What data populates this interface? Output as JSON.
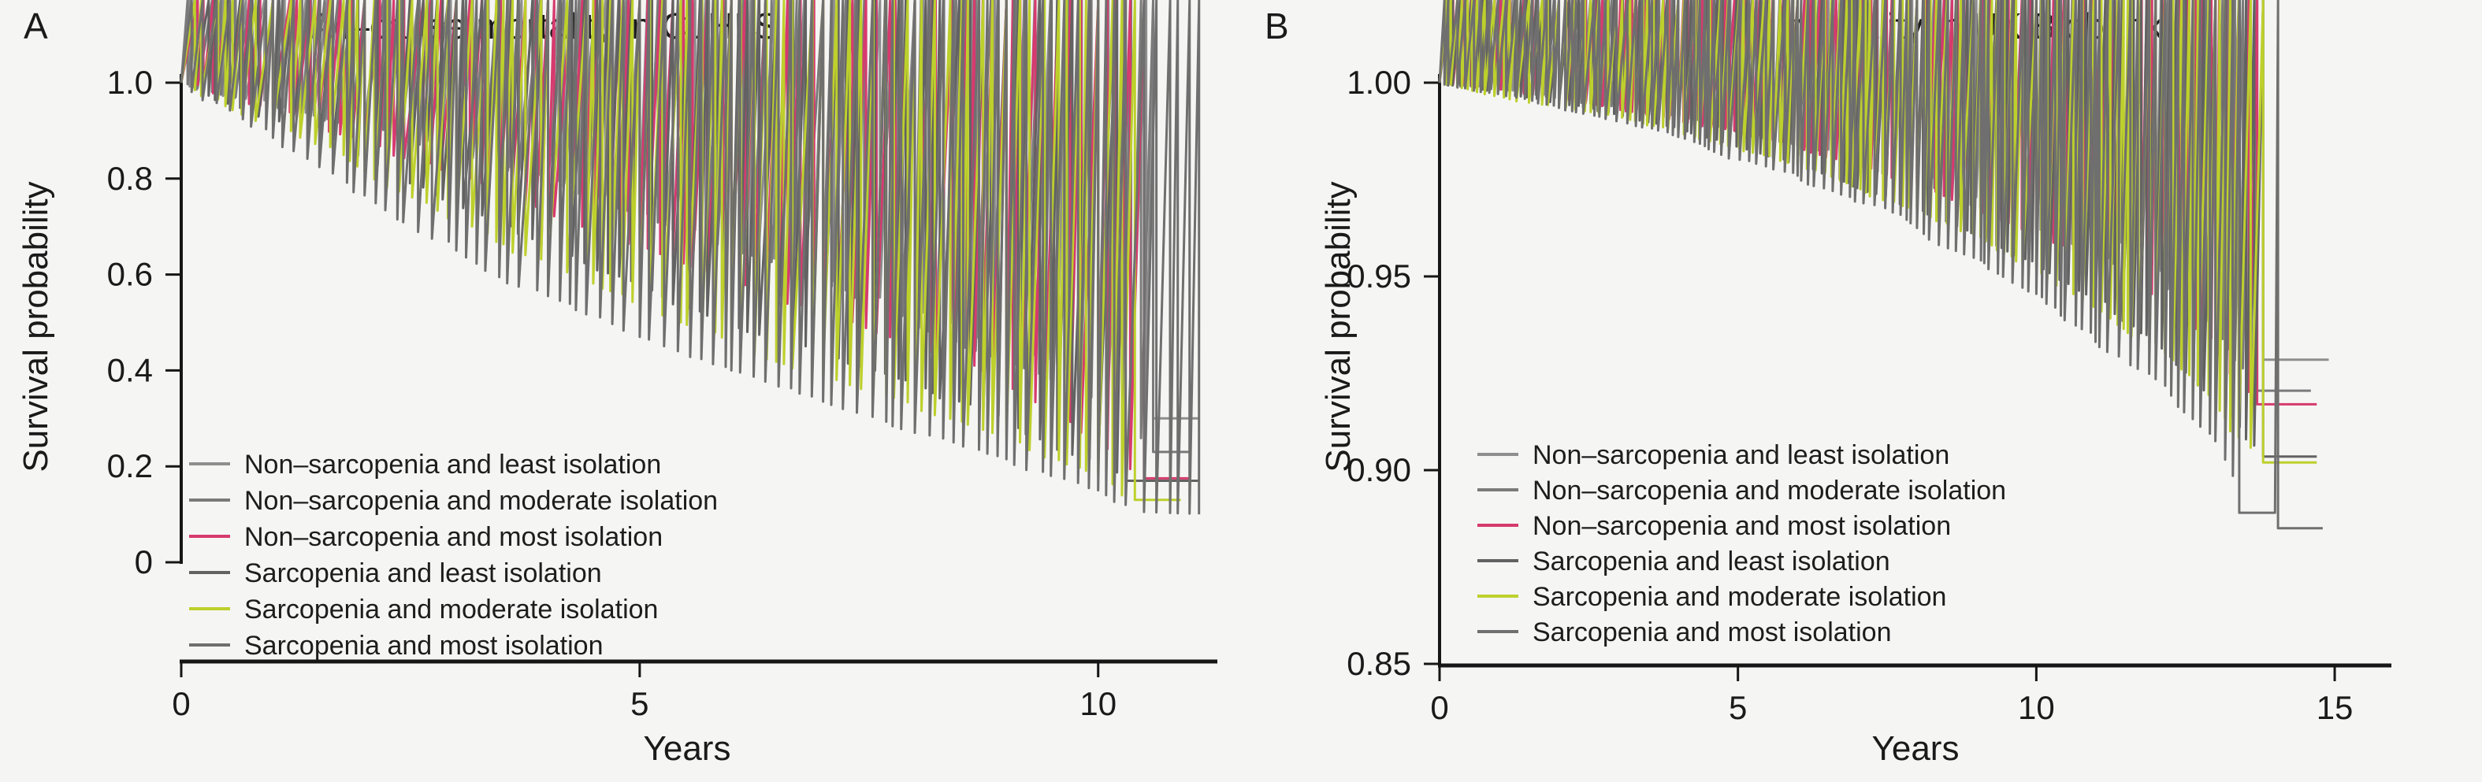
{
  "figure": {
    "background": "#f5f5f4",
    "text_color": "#1a1a1a",
    "axis_color": "#161616"
  },
  "chart_data": [
    {
      "panel_label": "A",
      "type": "line",
      "subtype": "kaplan-meier-survival",
      "title": "All–cause mortality in CLHLS",
      "xlabel": "Years",
      "ylabel": "Survival probability",
      "xlim": [
        0,
        11.3
      ],
      "ylim": [
        0,
        1.0
      ],
      "xticks": [
        0,
        5,
        10
      ],
      "xtick_labels": [
        "0",
        "5",
        "10"
      ],
      "yticks": [
        1.0,
        0.8,
        0.6,
        0.4,
        0.2,
        0.0
      ],
      "ytick_labels": [
        "1.0",
        "0.8",
        "0.6",
        "0.4",
        "0.2",
        "0"
      ],
      "grid": false,
      "legend_position": "inside-lower-left",
      "series": [
        {
          "name": "Non–sarcopenia and least isolation",
          "color": "#8e8e8e",
          "x": [
            0,
            1,
            2,
            3,
            4,
            5,
            6,
            7,
            8,
            9,
            10,
            10.6,
            11.1
          ],
          "y": [
            1.0,
            0.955,
            0.91,
            0.855,
            0.8,
            0.735,
            0.665,
            0.6,
            0.525,
            0.45,
            0.385,
            0.3,
            0.3
          ]
        },
        {
          "name": "Non–sarcopenia and moderate isolation",
          "color": "#7a7a7a",
          "x": [
            0,
            1,
            2,
            3,
            4,
            5,
            6,
            7,
            8,
            9,
            10,
            10.6,
            11.0
          ],
          "y": [
            1.0,
            0.95,
            0.905,
            0.85,
            0.79,
            0.725,
            0.655,
            0.58,
            0.5,
            0.42,
            0.33,
            0.23,
            0.23
          ]
        },
        {
          "name": "Non–sarcopenia and most isolation",
          "color": "#d63a6e",
          "x": [
            0,
            1,
            2,
            3,
            4,
            5,
            6,
            7,
            8,
            9,
            10,
            10.5,
            11.0
          ],
          "y": [
            1.0,
            0.945,
            0.88,
            0.805,
            0.73,
            0.66,
            0.59,
            0.52,
            0.45,
            0.38,
            0.25,
            0.175,
            0.175
          ]
        },
        {
          "name": "Sarcopenia and least isolation",
          "color": "#626262",
          "x": [
            0,
            1,
            2,
            3,
            4,
            5,
            6,
            7,
            8,
            9,
            10,
            10.3,
            11.1
          ],
          "y": [
            1.0,
            0.925,
            0.84,
            0.745,
            0.655,
            0.575,
            0.5,
            0.435,
            0.37,
            0.295,
            0.21,
            0.17,
            0.17
          ]
        },
        {
          "name": "Sarcopenia and moderate isolation",
          "color": "#bdd02c",
          "x": [
            0,
            1,
            2,
            3,
            4,
            5,
            6,
            7,
            8,
            9,
            10,
            10.4,
            10.9
          ],
          "y": [
            1.0,
            0.915,
            0.815,
            0.71,
            0.62,
            0.53,
            0.455,
            0.39,
            0.325,
            0.26,
            0.185,
            0.13,
            0.13
          ]
        },
        {
          "name": "Sarcopenia and most isolation",
          "color": "#6f6f6f",
          "x": [
            0,
            1,
            2,
            3,
            4,
            5,
            6,
            7,
            8,
            9,
            10,
            10.5,
            11.1
          ],
          "y": [
            1.0,
            0.885,
            0.765,
            0.65,
            0.555,
            0.47,
            0.4,
            0.335,
            0.27,
            0.215,
            0.15,
            0.105,
            0.1
          ]
        }
      ]
    },
    {
      "panel_label": "B",
      "type": "line",
      "subtype": "kaplan-meier-survival",
      "title": "All–cause mortality in UK Biobank",
      "xlabel": "Years",
      "ylabel": "Survival probability",
      "xlim": [
        0,
        15.95
      ],
      "ylim": [
        0.85,
        1.0
      ],
      "xticks": [
        0,
        5,
        10,
        15
      ],
      "xtick_labels": [
        "0",
        "5",
        "10",
        "15"
      ],
      "yticks": [
        1.0,
        0.95,
        0.9,
        0.85
      ],
      "ytick_labels": [
        "1.00",
        "0.95",
        "0.90",
        "0.85"
      ],
      "grid": false,
      "legend_position": "inside-lower-left",
      "series": [
        {
          "name": "Non–sarcopenia and least isolation",
          "color": "#8e8e8e",
          "x": [
            0,
            2,
            4,
            6,
            8,
            10,
            12,
            13,
            13.8,
            14.9
          ],
          "y": [
            1.0,
            0.9965,
            0.9915,
            0.985,
            0.977,
            0.9665,
            0.953,
            0.9435,
            0.9285,
            0.9285
          ]
        },
        {
          "name": "Non–sarcopenia and moderate isolation",
          "color": "#7a7a7a",
          "x": [
            0,
            2,
            4,
            6,
            8,
            10,
            12,
            13,
            13.7,
            14.6
          ],
          "y": [
            1.0,
            0.996,
            0.991,
            0.984,
            0.9745,
            0.9625,
            0.9475,
            0.9365,
            0.9205,
            0.9205
          ]
        },
        {
          "name": "Non–sarcopenia and most isolation",
          "color": "#d63a6e",
          "x": [
            0,
            2,
            4,
            6,
            8,
            10,
            12,
            13,
            13.7,
            14.7
          ],
          "y": [
            1.0,
            0.996,
            0.9905,
            0.9835,
            0.974,
            0.961,
            0.9445,
            0.932,
            0.917,
            0.917
          ]
        },
        {
          "name": "Sarcopenia and least isolation",
          "color": "#626262",
          "x": [
            0,
            2,
            4,
            6,
            8,
            10,
            12,
            13,
            13.8,
            14.7
          ],
          "y": [
            1.0,
            0.9945,
            0.988,
            0.979,
            0.9675,
            0.9525,
            0.933,
            0.9185,
            0.9035,
            0.9035
          ]
        },
        {
          "name": "Sarcopenia and moderate isolation",
          "color": "#bdd02c",
          "x": [
            0,
            2,
            4,
            6,
            8,
            10,
            12,
            13,
            13.8,
            14.7
          ],
          "y": [
            1.0,
            0.994,
            0.9875,
            0.9785,
            0.967,
            0.952,
            0.9325,
            0.918,
            0.902,
            0.902
          ]
        },
        {
          "name": "Sarcopenia and most isolation",
          "color": "#6f6f6f",
          "x": [
            0,
            2,
            4,
            6,
            8,
            10,
            12,
            13,
            13.4,
            14.0,
            14.05,
            14.8
          ],
          "y": [
            1.0,
            0.9935,
            0.986,
            0.976,
            0.9625,
            0.9455,
            0.9235,
            0.9075,
            0.889,
            0.889,
            0.885,
            0.885
          ]
        }
      ]
    }
  ]
}
